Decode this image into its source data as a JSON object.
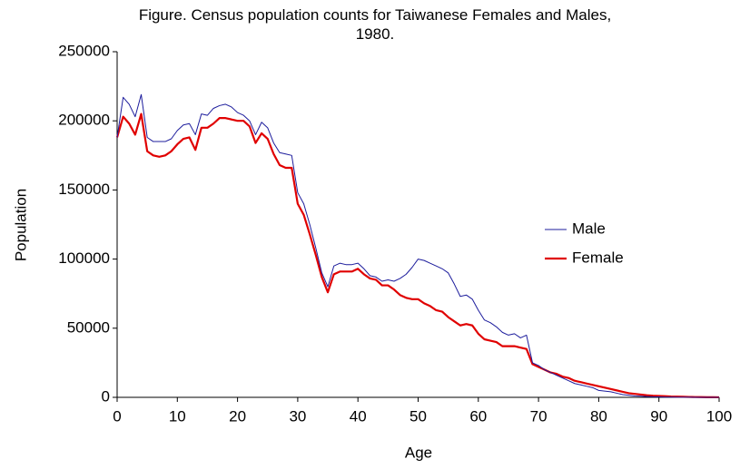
{
  "chart_data": {
    "type": "line",
    "title": "Figure. Census population counts for Taiwanese Females and Males, 1980.",
    "x_label": "Age",
    "y_label": "Population",
    "x": [
      0,
      1,
      2,
      3,
      4,
      5,
      6,
      7,
      8,
      9,
      10,
      11,
      12,
      13,
      14,
      15,
      16,
      17,
      18,
      19,
      20,
      21,
      22,
      23,
      24,
      25,
      26,
      27,
      28,
      29,
      30,
      31,
      32,
      33,
      34,
      35,
      36,
      37,
      38,
      39,
      40,
      41,
      42,
      43,
      44,
      45,
      46,
      47,
      48,
      49,
      50,
      51,
      52,
      53,
      54,
      55,
      56,
      57,
      58,
      59,
      60,
      61,
      62,
      63,
      64,
      65,
      66,
      67,
      68,
      69,
      70,
      71,
      72,
      73,
      74,
      75,
      76,
      77,
      78,
      79,
      80,
      81,
      82,
      83,
      84,
      85,
      86,
      87,
      88,
      89,
      90,
      91,
      92,
      93,
      94,
      95,
      96,
      97,
      98,
      99,
      100
    ],
    "series": [
      {
        "name": "Male",
        "color": "#1c1c9c",
        "values": [
          188000,
          217000,
          212000,
          203000,
          219000,
          188000,
          185000,
          185000,
          185000,
          187000,
          193000,
          197000,
          198000,
          190000,
          205000,
          204000,
          209000,
          211000,
          212000,
          210000,
          206000,
          204000,
          200000,
          190000,
          199000,
          195000,
          184000,
          177000,
          176000,
          175000,
          148000,
          140000,
          125000,
          108000,
          90000,
          80000,
          95000,
          97000,
          96000,
          96000,
          97000,
          93000,
          88000,
          87000,
          84000,
          85000,
          84000,
          86000,
          89000,
          94000,
          100000,
          99000,
          97000,
          95000,
          93000,
          90000,
          82000,
          73000,
          74000,
          71000,
          63000,
          56000,
          54000,
          51000,
          47000,
          45000,
          46000,
          43000,
          45000,
          25000,
          23000,
          20000,
          18000,
          16000,
          14000,
          12000,
          10000,
          9000,
          8000,
          7000,
          5000,
          4500,
          4000,
          3000,
          2000,
          1500,
          1000,
          800,
          600,
          400,
          300,
          200,
          150,
          100,
          80,
          60,
          40,
          30,
          20,
          10,
          10
        ]
      },
      {
        "name": "Female",
        "color": "#e00000",
        "values": [
          188000,
          203000,
          198000,
          190000,
          205000,
          178000,
          175000,
          174000,
          175000,
          178000,
          183000,
          187000,
          188000,
          179000,
          195000,
          195000,
          198000,
          202000,
          202000,
          201000,
          200000,
          200000,
          196000,
          184000,
          191000,
          187000,
          176000,
          168000,
          166000,
          166000,
          140000,
          132000,
          118000,
          103000,
          87000,
          76000,
          89000,
          91000,
          91000,
          91000,
          93000,
          89000,
          86000,
          85000,
          81000,
          81000,
          78000,
          74000,
          72000,
          71000,
          71000,
          68000,
          66000,
          63000,
          62000,
          58000,
          55000,
          52000,
          53000,
          52000,
          46000,
          42000,
          41000,
          40000,
          37000,
          37000,
          37000,
          36000,
          35000,
          24000,
          22000,
          20000,
          18000,
          17000,
          15000,
          14000,
          12000,
          11000,
          10000,
          9000,
          8000,
          7000,
          6000,
          5000,
          4000,
          3000,
          2500,
          2000,
          1500,
          1200,
          1000,
          800,
          600,
          500,
          400,
          300,
          200,
          150,
          100,
          60,
          40
        ]
      }
    ],
    "xlim": [
      0,
      100
    ],
    "xticks": [
      0,
      10,
      20,
      30,
      40,
      50,
      60,
      70,
      80,
      90,
      100
    ],
    "ylim": [
      0,
      250000
    ],
    "yticks": [
      0,
      50000,
      100000,
      150000,
      200000,
      250000
    ],
    "grid": false,
    "legend": "right"
  }
}
